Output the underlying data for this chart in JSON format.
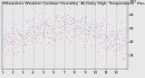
{
  "title": "Milwaukee Weather Outdoor Humidity  At Daily High  Temperature  (Past Year)",
  "title_fontsize": 3.2,
  "background_color": "#e8e8e8",
  "plot_bg_color": "#e8e8e8",
  "grid_color": "#999999",
  "tick_fontsize": 3.0,
  "ylim": [
    0,
    100
  ],
  "num_points": 365,
  "blue_color": "#0000dd",
  "red_color": "#dd0000",
  "marker_size": 0.5,
  "num_vert_gridlines": 13,
  "y_ticks": [
    20,
    40,
    60,
    80,
    100
  ],
  "spike_day": 115,
  "spike_value": 98
}
